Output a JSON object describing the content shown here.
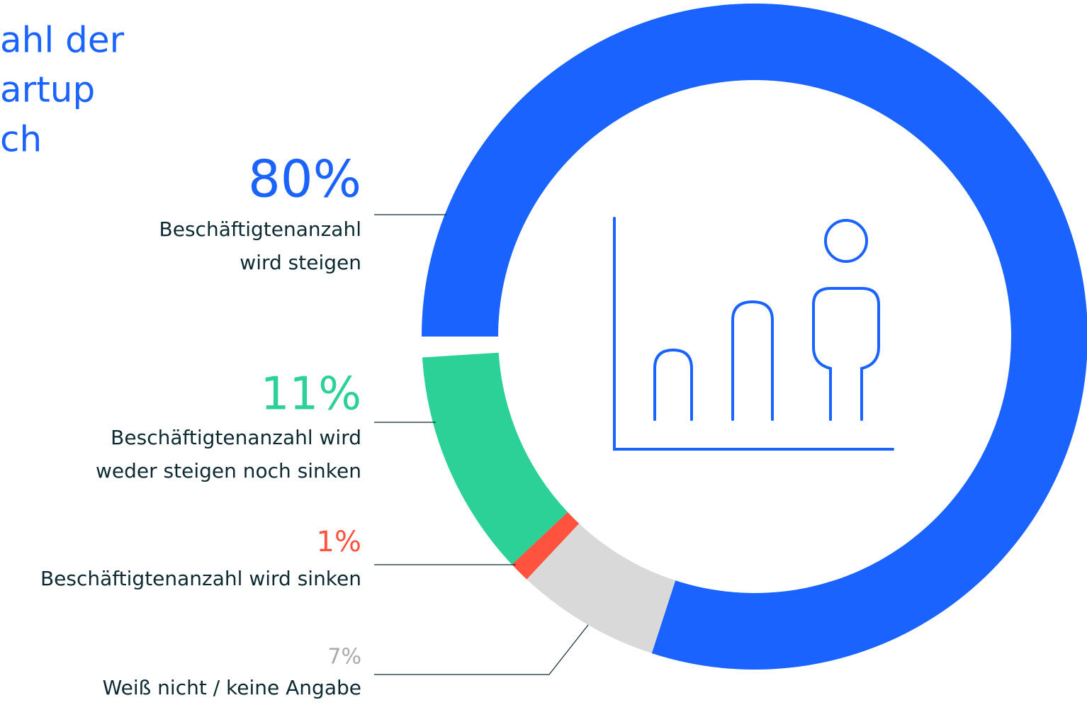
{
  "chart_data": {
    "type": "donut",
    "title_lines": [
      "ahl der",
      "artup",
      "ch"
    ],
    "categories": [
      [
        "Beschäftigtenanzahl",
        "wird steigen"
      ],
      [
        "Weiß nicht / keine Angabe"
      ],
      [
        "Beschäftigtenanzahl wird sinken"
      ],
      [
        "Beschäftigtenanzahl wird",
        "weder steigen noch sinken"
      ]
    ],
    "values": [
      80,
      7,
      1,
      11
    ],
    "value_labels": [
      "80%",
      "7%",
      "1%",
      "11%"
    ],
    "colors": [
      "#1a63ff",
      "#d9d9d9",
      "#ff5340",
      "#2bd197"
    ]
  }
}
